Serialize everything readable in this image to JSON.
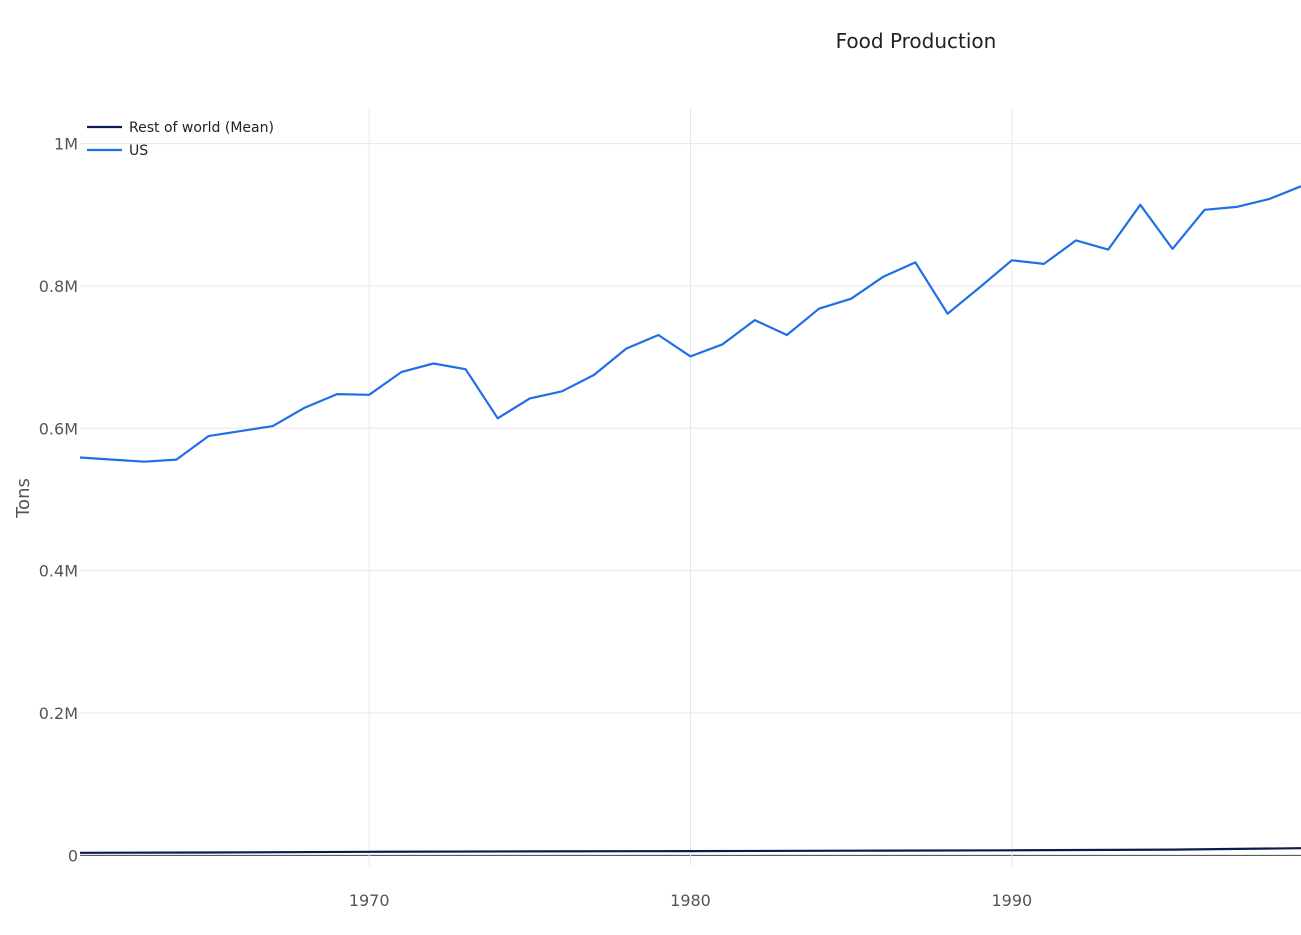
{
  "chart_data": {
    "type": "line",
    "title": "Food Production",
    "xlabel": "",
    "ylabel": "Tons",
    "xlim": [
      1961,
      1999
    ],
    "ylim": [
      -15000,
      1050000
    ],
    "x_ticks": [
      1970,
      1980,
      1990
    ],
    "x_tick_labels": [
      "1970",
      "1980",
      "1990"
    ],
    "y_ticks": [
      0,
      200000,
      400000,
      600000,
      800000,
      1000000
    ],
    "y_tick_labels": [
      "0",
      "0.2M",
      "0.4M",
      "0.6M",
      "0.8M",
      "1M"
    ],
    "grid": true,
    "legend_position": "top-left",
    "series": [
      {
        "name": "Rest of world (Mean)",
        "color": "#0d1b4c",
        "x": [
          1961,
          1965,
          1970,
          1975,
          1980,
          1985,
          1990,
          1995,
          1999
        ],
        "values": [
          3500,
          4000,
          5000,
          5500,
          6000,
          6500,
          7000,
          8000,
          10000
        ]
      },
      {
        "name": "US",
        "color": "#1f6fe5",
        "x": [
          1961,
          1962,
          1963,
          1964,
          1965,
          1966,
          1967,
          1968,
          1969,
          1970,
          1971,
          1972,
          1973,
          1974,
          1975,
          1976,
          1977,
          1978,
          1979,
          1980,
          1981,
          1982,
          1983,
          1984,
          1985,
          1986,
          1987,
          1988,
          1989,
          1990,
          1991,
          1992,
          1993,
          1994,
          1995,
          1996,
          1997,
          1998,
          1999
        ],
        "values": [
          559000,
          556000,
          553000,
          556000,
          589000,
          596000,
          603000,
          629000,
          648000,
          647000,
          679000,
          691000,
          683000,
          614000,
          642000,
          652000,
          675000,
          712000,
          731000,
          701000,
          718000,
          752000,
          731000,
          768000,
          782000,
          813000,
          833000,
          761000,
          798000,
          836000,
          831000,
          864000,
          851000,
          914000,
          852000,
          907000,
          911000,
          922000,
          940000
        ]
      }
    ]
  }
}
